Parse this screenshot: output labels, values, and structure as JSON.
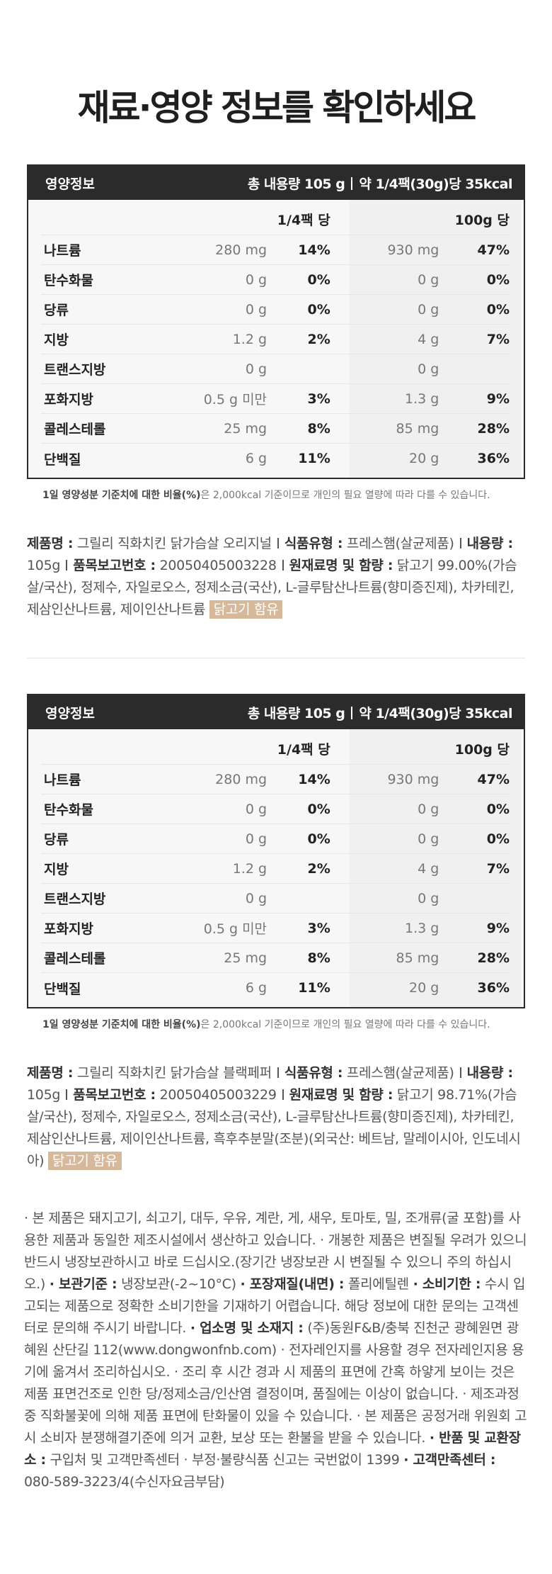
{
  "title": "재료·영양 정보를 확인하세요",
  "nutrition_tables": [
    {
      "label": "영양정보",
      "total": "총 내용량 105 g",
      "per": "약 1/4팩(30g)당 35kcal",
      "col_header_1": "1/4팩 당",
      "col_header_2": "100g 당",
      "rows": [
        {
          "name": "나트륨",
          "amt1": "280 mg",
          "pct1": "14%",
          "amt2": "930 mg",
          "pct2": "47%"
        },
        {
          "name": "탄수화물",
          "amt1": "0 g",
          "pct1": "0%",
          "amt2": "0 g",
          "pct2": "0%"
        },
        {
          "name": "당류",
          "amt1": "0 g",
          "pct1": "0%",
          "amt2": "0 g",
          "pct2": "0%"
        },
        {
          "name": "지방",
          "amt1": "1.2 g",
          "pct1": "2%",
          "amt2": "4 g",
          "pct2": "7%"
        },
        {
          "name": "트랜스지방",
          "amt1": "0 g",
          "pct1": "",
          "amt2": "0 g",
          "pct2": ""
        },
        {
          "name": "포화지방",
          "amt1": "0.5 g 미만",
          "pct1": "3%",
          "amt2": "1.3 g",
          "pct2": "9%"
        },
        {
          "name": "콜레스테롤",
          "amt1": "25 mg",
          "pct1": "8%",
          "amt2": "85 mg",
          "pct2": "28%"
        },
        {
          "name": "단백질",
          "amt1": "6 g",
          "pct1": "11%",
          "amt2": "20 g",
          "pct2": "36%"
        }
      ],
      "footnote_bold": "1일 영양성분 기준치에 대한 비율(%)",
      "footnote_rest": "은 2,000kcal 기준이므로 개인의 필요 열량에 따라 다를 수 있습니다."
    },
    {
      "label": "영양정보",
      "total": "총 내용량 105 g",
      "per": "약 1/4팩(30g)당 35kcal",
      "col_header_1": "1/4팩 당",
      "col_header_2": "100g 당",
      "rows": [
        {
          "name": "나트륨",
          "amt1": "280 mg",
          "pct1": "14%",
          "amt2": "930 mg",
          "pct2": "47%"
        },
        {
          "name": "탄수화물",
          "amt1": "0 g",
          "pct1": "0%",
          "amt2": "0 g",
          "pct2": "0%"
        },
        {
          "name": "당류",
          "amt1": "0 g",
          "pct1": "0%",
          "amt2": "0 g",
          "pct2": "0%"
        },
        {
          "name": "지방",
          "amt1": "1.2 g",
          "pct1": "2%",
          "amt2": "4 g",
          "pct2": "7%"
        },
        {
          "name": "트랜스지방",
          "amt1": "0 g",
          "pct1": "",
          "amt2": "0 g",
          "pct2": ""
        },
        {
          "name": "포화지방",
          "amt1": "0.5 g 미만",
          "pct1": "3%",
          "amt2": "1.3 g",
          "pct2": "9%"
        },
        {
          "name": "콜레스테롤",
          "amt1": "25 mg",
          "pct1": "8%",
          "amt2": "85 mg",
          "pct2": "28%"
        },
        {
          "name": "단백질",
          "amt1": "6 g",
          "pct1": "11%",
          "amt2": "20 g",
          "pct2": "36%"
        }
      ],
      "footnote_bold": "1일 영양성분 기준치에 대한 비율(%)",
      "footnote_rest": "은 2,000kcal 기준이므로 개인의 필요 열량에 따라 다를 수 있습니다."
    }
  ],
  "product_info": [
    {
      "name_label": "제품명 :",
      "name_value": "그릴리 직화치킨 닭가슴살 오리지널",
      "type_label": "식품유형 :",
      "type_value": "프레스햄(살균제품)",
      "volume_label": "내용량 :",
      "volume_value": "105g",
      "report_label": "품목보고번호 :",
      "report_value": "20050405003228",
      "ingredients_label": "원재료명 및 함량 :",
      "ingredients_value": "닭고기 99.00%(가슴살/국산), 정제수, 자일로오스, 정제소금(국산), L-글루탐산나트륨(향미증진제), 차카테킨, 제삼인산나트륨, 제이인산나트륨",
      "allergen": "닭고기 함유"
    },
    {
      "name_label": "제품명 :",
      "name_value": "그릴리 직화치킨 닭가슴살 블랙페퍼",
      "type_label": "식품유형 :",
      "type_value": "프레스햄(살균제품)",
      "volume_label": "내용량 :",
      "volume_value": "105g",
      "report_label": "품목보고번호 :",
      "report_value": "20050405003229",
      "ingredients_label": "원재료명 및 함량 :",
      "ingredients_value": "닭고기 98.71%(가슴살/국산), 정제수, 자일로오스, 정제소금(국산), L-글루탐산나트륨(향미증진제), 차카테킨, 제삼인산나트륨, 제이인산나트륨, 흑후추분말(조분)(외국산: 베트남, 말레이시아, 인도네시아)",
      "allergen": "닭고기 함유"
    }
  ],
  "notice": {
    "p1": "· 본 제품은 돼지고기, 쇠고기, 대두, 우유, 계란, 게, 새우, 토마토, 밀, 조개류(굴 포함)를 사용한 제품과 동일한 제조시설에서 생산하고 있습니다. · 개봉한 제품은 변질될 우려가 있으니 반드시 냉장보관하시고 바로 드십시오.(장기간 냉장보관 시 변질될 수 있으니 주의 하십시오.) ",
    "storage_label": "· 보관기준 :",
    "storage_value": " 냉장보관(-2~10°C) ",
    "material_label": "· 포장재질(내면) :",
    "material_value": " 폴리에틸렌 ",
    "expiry_label": "· 소비기한 :",
    "expiry_value": " 수시 입고되는 제품으로 정확한 소비기한을 기재하기 어렵습니다. 해당 정보에 대한 문의는 고객센터로 문의해 주시기 바랍니다. ",
    "company_label": "· 업소명 및 소재지 :",
    "company_value": " (주)동원F&B/충북 진천군 광혜원면 광혜원 산단길 112(www.dongwonfnb.com) · 전자레인지를 사용할 경우 전자레인지용 용기에 옮겨서 조리하십시오. · 조리 후 시간 경과 시 제품의 표면에 간혹 하얗게 보이는 것은 제품 표면건조로 인한 당/정제소금/인산염 결정이며, 품질에는 이상이 없습니다. · 제조과정 중 직화불꽃에 의해 제품 표면에 탄화물이 있을 수 있습니다. · 본 제품은 공정거래 위원회 고시 소비자 분쟁해결기준에 의거 교환, 보상 또는 환불을 받을 수 있습니다. ",
    "exchange_label": "· 반품 및 교환장소 :",
    "exchange_value": " 구입처 및 고객만족센터 · 부정·불량식품 신고는 국번없이 1399 ",
    "cs_label": "· 고객만족센터 :",
    "cs_value": " 080-589-3223/4(수신자요금부담)"
  }
}
